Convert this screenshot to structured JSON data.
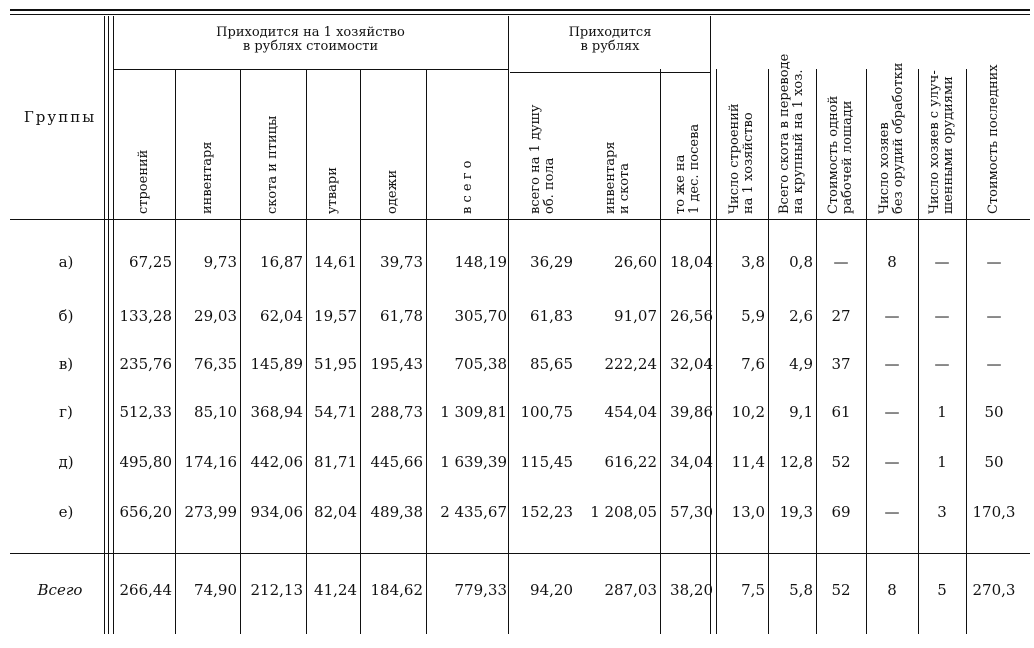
{
  "header": {
    "groups_label": "Группы",
    "span1_line1": "Приходится на 1 хозяйство",
    "span1_line2": "в рублях стоимости",
    "span2_line1": "Приходится",
    "span2_line2": "в рублях"
  },
  "columns": [
    {
      "l1": "строений",
      "l2": ""
    },
    {
      "l1": "инвентаря",
      "l2": ""
    },
    {
      "l1": "скота и птицы",
      "l2": ""
    },
    {
      "l1": "утвари",
      "l2": ""
    },
    {
      "l1": "одежи",
      "l2": ""
    },
    {
      "l1": "в с е г о",
      "l2": ""
    },
    {
      "l1": "всего на 1 душу",
      "l2": "об. пола"
    },
    {
      "l1": "инвентаря",
      "l2": "и скота"
    },
    {
      "l1": "то же на",
      "l2": "1 дес. посева"
    },
    {
      "l1": "Число строений",
      "l2": "на 1 хозяйство"
    },
    {
      "l1": "Всего скота в переводе",
      "l2": "на крупный на 1 хоз."
    },
    {
      "l1": "Стоимость одной",
      "l2": "рабочей лошади"
    },
    {
      "l1": "Число хозяев",
      "l2": "без орудий обработки"
    },
    {
      "l1": "Число хозяев с улуч-",
      "l2": "шенными орудиями"
    },
    {
      "l1": "Стоимость последних",
      "l2": ""
    }
  ],
  "rows": [
    {
      "group": "а)",
      "values": [
        "67,25",
        "9,73",
        "16,87",
        "14,61",
        "39,73",
        "148,19",
        "36,29",
        "26,60",
        "18,04",
        "3,8",
        "0,8",
        "—",
        "8",
        "—",
        "—"
      ]
    },
    {
      "group": "б)",
      "values": [
        "133,28",
        "29,03",
        "62,04",
        "19,57",
        "61,78",
        "305,70",
        "61,83",
        "91,07",
        "26,56",
        "5,9",
        "2,6",
        "27",
        "—",
        "—",
        "—"
      ]
    },
    {
      "group": "в)",
      "values": [
        "235,76",
        "76,35",
        "145,89",
        "51,95",
        "195,43",
        "705,38",
        "85,65",
        "222,24",
        "32,04",
        "7,6",
        "4,9",
        "37",
        "—",
        "—",
        "—"
      ]
    },
    {
      "group": "г)",
      "values": [
        "512,33",
        "85,10",
        "368,94",
        "54,71",
        "288,73",
        "1 309,81",
        "100,75",
        "454,04",
        "39,86",
        "10,2",
        "9,1",
        "61",
        "—",
        "1",
        "50"
      ]
    },
    {
      "group": "д)",
      "values": [
        "495,80",
        "174,16",
        "442,06",
        "81,71",
        "445,66",
        "1 639,39",
        "115,45",
        "616,22",
        "34,04",
        "11,4",
        "12,8",
        "52",
        "—",
        "1",
        "50"
      ]
    },
    {
      "group": "е)",
      "values": [
        "656,20",
        "273,99",
        "934,06",
        "82,04",
        "489,38",
        "2 435,67",
        "152,23",
        "1 208,05",
        "57,30",
        "13,0",
        "19,3",
        "69",
        "—",
        "3",
        "170,3"
      ]
    }
  ],
  "total": {
    "group": "Всего",
    "values": [
      "266,44",
      "74,90",
      "212,13",
      "41,24",
      "184,62",
      "779,33",
      "94,20",
      "287,03",
      "38,20",
      "7,5",
      "5,8",
      "52",
      "8",
      "5",
      "270,3"
    ]
  }
}
